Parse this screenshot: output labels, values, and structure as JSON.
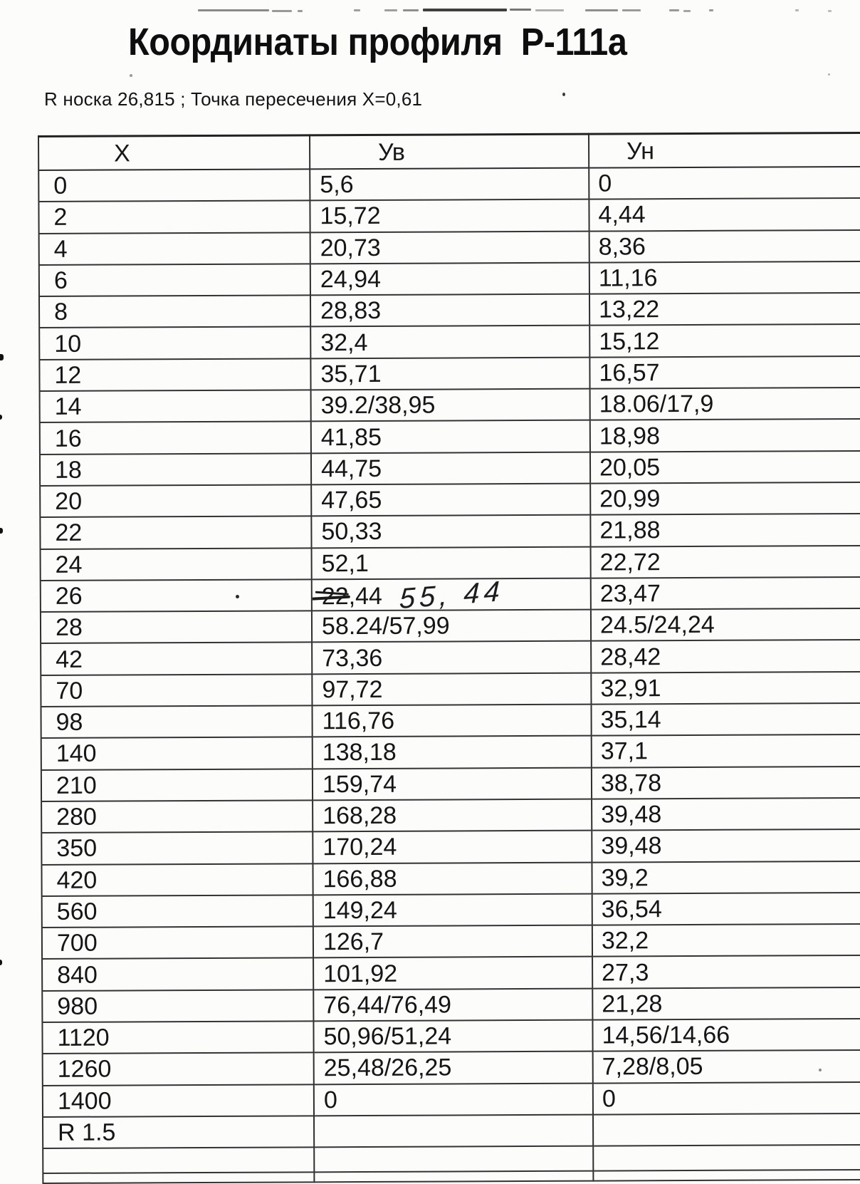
{
  "title": "Координаты профиля  Р-111а",
  "subtitle": "R носка 26,815 ; Точка пересечения Х=0,61",
  "table": {
    "headers": {
      "x": "Х",
      "yv": "Ув",
      "yn": "Ун"
    },
    "rows": [
      {
        "x": "0",
        "yv": "5,6",
        "yn": "0"
      },
      {
        "x": "2",
        "yv": "15,72",
        "yn": "4,44"
      },
      {
        "x": "4",
        "yv": "20,73",
        "yn": "8,36"
      },
      {
        "x": "6",
        "yv": "24,94",
        "yn": "11,16"
      },
      {
        "x": "8",
        "yv": "28,83",
        "yn": "13,22"
      },
      {
        "x": "10",
        "yv": "32,4",
        "yn": "15,12"
      },
      {
        "x": "12",
        "yv": "35,71",
        "yn": "16,57"
      },
      {
        "x": "14",
        "yv": "39.2/38,95",
        "yn": "18.06/17,9"
      },
      {
        "x": "16",
        "yv": "41,85",
        "yn": "18,98"
      },
      {
        "x": "18",
        "yv": "44,75",
        "yn": "20,05"
      },
      {
        "x": "20",
        "yv": "47,65",
        "yn": "20,99"
      },
      {
        "x": "22",
        "yv": "50,33",
        "yn": "21,88"
      },
      {
        "x": "24",
        "yv": "52,1",
        "yn": "22,72"
      },
      {
        "x": "26",
        "yv_struck": "22",
        "yv_rest": ",44",
        "yv_handwritten": "55, 44",
        "yn": "23,47"
      },
      {
        "x": "28",
        "yv": "58.24/57,99",
        "yn": "24.5/24,24"
      },
      {
        "x": "42",
        "yv": "73,36",
        "yn": "28,42"
      },
      {
        "x": "70",
        "yv": "97,72",
        "yn": "32,91"
      },
      {
        "x": "98",
        "yv": "116,76",
        "yn": "35,14"
      },
      {
        "x": "140",
        "yv": "138,18",
        "yn": "37,1"
      },
      {
        "x": "210",
        "yv": "159,74",
        "yn": "38,78"
      },
      {
        "x": "280",
        "yv": "168,28",
        "yn": "39,48"
      },
      {
        "x": "350",
        "yv": "170,24",
        "yn": "39,48"
      },
      {
        "x": "420",
        "yv": "166,88",
        "yn": "39,2"
      },
      {
        "x": "560",
        "yv": "149,24",
        "yn": "36,54"
      },
      {
        "x": "700",
        "yv": "126,7",
        "yn": "32,2"
      },
      {
        "x": "840",
        "yv": "101,92",
        "yn": "27,3"
      },
      {
        "x": "980",
        "yv": "76,44/76,49",
        "yn": "21,28"
      },
      {
        "x": "1120",
        "yv": "50,96/51,24",
        "yn": "14,56/14,66"
      },
      {
        "x": "1260",
        "yv": "25,48/26,25",
        "yn": "7,28/8,05"
      },
      {
        "x": "1400",
        "yv": "0",
        "yn": "0"
      },
      {
        "x": "R 1.5",
        "yv": "",
        "yn": ""
      },
      {
        "x": "",
        "yv": "",
        "yn": "",
        "short": true
      },
      {
        "x": "",
        "yv": "",
        "yn": "",
        "partial": true
      }
    ]
  }
}
